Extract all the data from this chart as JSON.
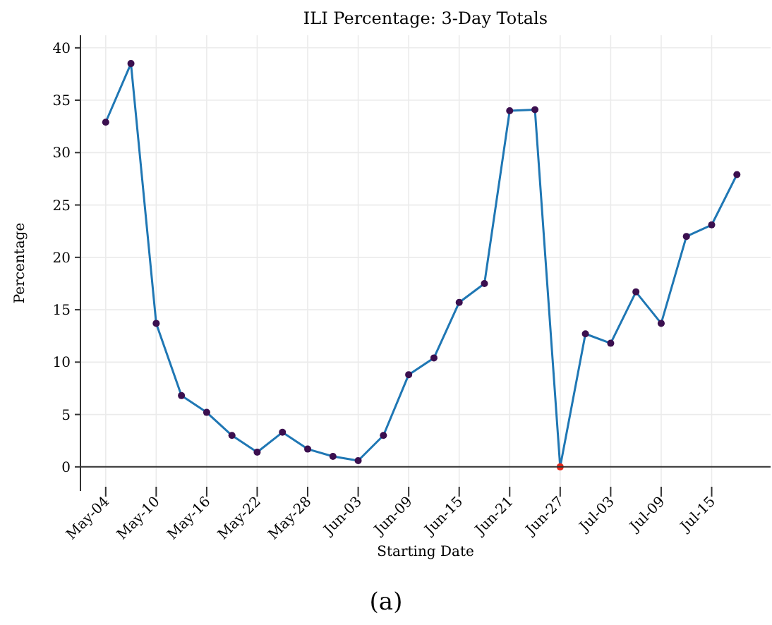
{
  "chart_data": {
    "type": "line",
    "title": "ILI Percentage: 3-Day Totals",
    "xlabel": "Starting Date",
    "ylabel": "Percentage",
    "annotations": [
      "(a)"
    ],
    "x": [
      "--05-04",
      "--05-07",
      "--05-10",
      "--05-13",
      "--05-16",
      "--05-19",
      "--05-22",
      "--05-25",
      "--05-28",
      "--05-31",
      "--06-03",
      "--06-06",
      "--06-09",
      "--06-12",
      "--06-15",
      "--06-18",
      "--06-21",
      "--06-24",
      "--06-27",
      "--06-30",
      "--07-03",
      "--07-06",
      "--07-09",
      "--07-12",
      "--07-15",
      "--07-18"
    ],
    "series": [
      {
        "color": "#1f77b4",
        "marker": "none",
        "values": [
          32.9,
          38.5,
          13.7,
          6.8,
          5.2,
          3.0,
          1.4,
          3.3,
          1.7,
          1.0,
          0.6,
          3.0,
          8.8,
          10.4,
          15.7,
          17.5,
          34.0,
          34.1,
          0,
          12.7,
          11.8,
          16.7,
          13.7,
          22.0,
          23.1,
          27.9
        ]
      },
      {
        "type": "scatter",
        "marker": "circle",
        "colors": [
          "#3b0f4f",
          "#3b0f4f",
          "#3b0f4f",
          "#3b0f4f",
          "#3b0f4f",
          "#3b0f4f",
          "#3b0f4f",
          "#3b0f4f",
          "#3b0f4f",
          "#3b0f4f",
          "#3b0f4f",
          "#3b0f4f",
          "#3b0f4f",
          "#3b0f4f",
          "#3b0f4f",
          "#3b0f4f",
          "#3b0f4f",
          "#3b0f4f",
          "#e8271a",
          "#3b0f4f",
          "#3b0f4f",
          "#3b0f4f",
          "#3b0f4f",
          "#3b0f4f",
          "#3b0f4f",
          "#3b0f4f"
        ],
        "values": [
          32.9,
          38.5,
          13.7,
          6.8,
          5.2,
          3.0,
          1.4,
          3.3,
          1.7,
          1.0,
          0.6,
          3.0,
          8.8,
          10.4,
          15.7,
          17.5,
          34.0,
          34.1,
          0,
          12.7,
          11.8,
          16.7,
          13.7,
          22.0,
          23.1,
          27.9
        ]
      }
    ],
    "xlim": [
      "--05-01",
      "--07-22"
    ],
    "xticks": [
      {
        "value": "--05-04",
        "label": "May-04"
      },
      {
        "value": "--05-10",
        "label": "May-10"
      },
      {
        "value": "--05-16",
        "label": "May-16"
      },
      {
        "value": "--05-22",
        "label": "May-22"
      },
      {
        "value": "--05-28",
        "label": "May-28"
      },
      {
        "value": "--06-03",
        "label": "Jun-03"
      },
      {
        "value": "--06-09",
        "label": "Jun-09"
      },
      {
        "value": "--06-15",
        "label": "Jun-15"
      },
      {
        "value": "--06-21",
        "label": "Jun-21"
      },
      {
        "value": "--06-27",
        "label": "Jun-27"
      },
      {
        "value": "--07-03",
        "label": "Jul-03"
      },
      {
        "value": "--07-09",
        "label": "Jul-09"
      },
      {
        "value": "--07-15",
        "label": "Jul-15"
      }
    ],
    "ylim": [
      -2.3,
      41.2
    ],
    "yticks": [
      0,
      5,
      10,
      15,
      20,
      25,
      30,
      35,
      40
    ],
    "grid": true
  }
}
